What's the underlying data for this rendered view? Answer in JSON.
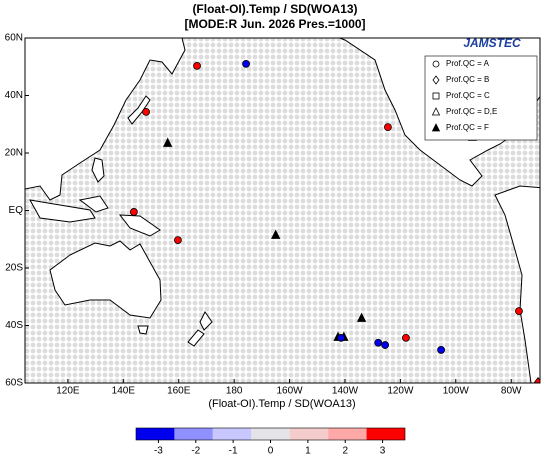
{
  "map": {
    "title": "(Float-OI).Temp / SD(WOA13)",
    "subtitle": "[MODE:R Jun. 2026  Pres.=1000]",
    "x_label": "(Float-OI).Temp / SD(WOA13)",
    "logo": "JAMSTEC",
    "xlim": [
      104.5,
      290.4
    ],
    "ylim": [
      -60,
      60
    ],
    "xticks": [
      {
        "value": 120,
        "label": "120E"
      },
      {
        "value": 140,
        "label": "140E"
      },
      {
        "value": 160,
        "label": "160E"
      },
      {
        "value": 180,
        "label": "180"
      },
      {
        "value": 200,
        "label": "160W"
      },
      {
        "value": 220,
        "label": "140W"
      },
      {
        "value": 240,
        "label": "120W"
      },
      {
        "value": 260,
        "label": "100W"
      },
      {
        "value": 280,
        "label": "80W"
      }
    ],
    "yticks": [
      {
        "value": 60,
        "label": "60N"
      },
      {
        "value": 40,
        "label": "40N"
      },
      {
        "value": 20,
        "label": "20N"
      },
      {
        "value": 0,
        "label": "EQ"
      },
      {
        "value": -20,
        "label": "20S"
      },
      {
        "value": -40,
        "label": "40S"
      },
      {
        "value": -60,
        "label": "60S"
      }
    ],
    "legend": [
      {
        "shape": "circle",
        "label": "Prof.QC = A"
      },
      {
        "shape": "diamond",
        "label": "Prof.QC = B"
      },
      {
        "shape": "square",
        "label": "Prof.QC = C"
      },
      {
        "shape": "triangle",
        "label": "Prof.QC = D,E"
      },
      {
        "shape": "filled-triangle",
        "label": "Prof.QC = F"
      }
    ],
    "markers": [
      {
        "shape": "circle",
        "lon": 166.6,
        "lat": 50.3,
        "value": 3.3
      },
      {
        "shape": "circle",
        "lon": 184.3,
        "lat": 51,
        "value": -3.3
      },
      {
        "shape": "circle",
        "lon": 148.2,
        "lat": 34.3,
        "value": 3.3
      },
      {
        "shape": "filled-triangle",
        "lon": 156,
        "lat": 23.5
      },
      {
        "shape": "circle",
        "lon": 235.5,
        "lat": 29,
        "value": 3.3
      },
      {
        "shape": "filled-triangle",
        "lon": 266,
        "lat": 25.6
      },
      {
        "shape": "circle",
        "lon": 143.8,
        "lat": -0.5,
        "value": 3.3
      },
      {
        "shape": "circle",
        "lon": 159.7,
        "lat": -10.3,
        "value": 3.3
      },
      {
        "shape": "filled-triangle",
        "lon": 195,
        "lat": -8.5
      },
      {
        "shape": "circle",
        "lon": 282.8,
        "lat": -35,
        "value": 3.3
      },
      {
        "shape": "filled-triangle",
        "lon": 226,
        "lat": -37.4
      },
      {
        "shape": "filled-triangle",
        "lon": 217.5,
        "lat": -44
      },
      {
        "shape": "filled-triangle",
        "lon": 219.6,
        "lat": -44
      },
      {
        "shape": "circle",
        "lon": 218.6,
        "lat": -44.3,
        "value": -3.3
      },
      {
        "shape": "circle",
        "lon": 232,
        "lat": -46,
        "value": -3.3
      },
      {
        "shape": "circle",
        "lon": 234.5,
        "lat": -46.8,
        "value": -3.3
      },
      {
        "shape": "circle",
        "lon": 242,
        "lat": -44.3,
        "value": 3.3
      },
      {
        "shape": "circle",
        "lon": 254.7,
        "lat": -48.5,
        "value": -3.3
      },
      {
        "shape": "diamond",
        "lon": 289.7,
        "lat": -59.7,
        "value": 3.3
      }
    ],
    "colorbar": {
      "lim": [
        -3.6,
        3.6
      ],
      "colors": [
        "#0000ee",
        "#9090ff",
        "#c8c8ff",
        "#e4e4e8",
        "#f4cccc",
        "#ffa8a8",
        "#ff0000"
      ],
      "ticks": [
        -3,
        -2,
        -1,
        0,
        1,
        2,
        3
      ]
    }
  }
}
